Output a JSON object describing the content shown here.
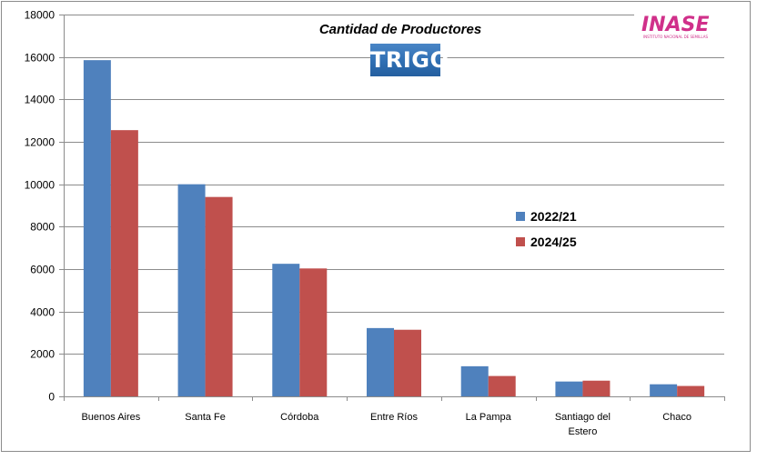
{
  "chart_data": {
    "type": "bar",
    "title": "Cantidad de Productores",
    "subtitle": "TRIGO",
    "categories": [
      "Buenos Aires",
      "Santa Fe",
      "Córdoba",
      "Entre Ríos",
      "La Pampa",
      "Santiago del Estero",
      "Chaco"
    ],
    "category_lines": [
      [
        "Buenos Aires"
      ],
      [
        "Santa Fe"
      ],
      [
        "Córdoba"
      ],
      [
        "Entre Ríos"
      ],
      [
        "La Pampa"
      ],
      [
        "Santiago del",
        "Estero"
      ],
      [
        "Chaco"
      ]
    ],
    "series": [
      {
        "name": "2022/21",
        "color": "#4f81bd",
        "values": [
          15850,
          10000,
          6250,
          3220,
          1420,
          700,
          570
        ]
      },
      {
        "name": "2024/25",
        "color": "#c0504d",
        "values": [
          12550,
          9400,
          6030,
          3140,
          960,
          740,
          490
        ]
      }
    ],
    "ylim": [
      0,
      18000
    ],
    "yticks": [
      "0",
      "2000",
      "4000",
      "6000",
      "8000",
      "10000",
      "12000",
      "14000",
      "16000",
      "18000"
    ],
    "xlabel": "",
    "ylabel": "",
    "grid": true,
    "legend_position": "right"
  },
  "logo": {
    "text": "INASE",
    "subtext": "INSTITUTO NACIONAL DE SEMILLAS",
    "color": "#d0308a"
  }
}
